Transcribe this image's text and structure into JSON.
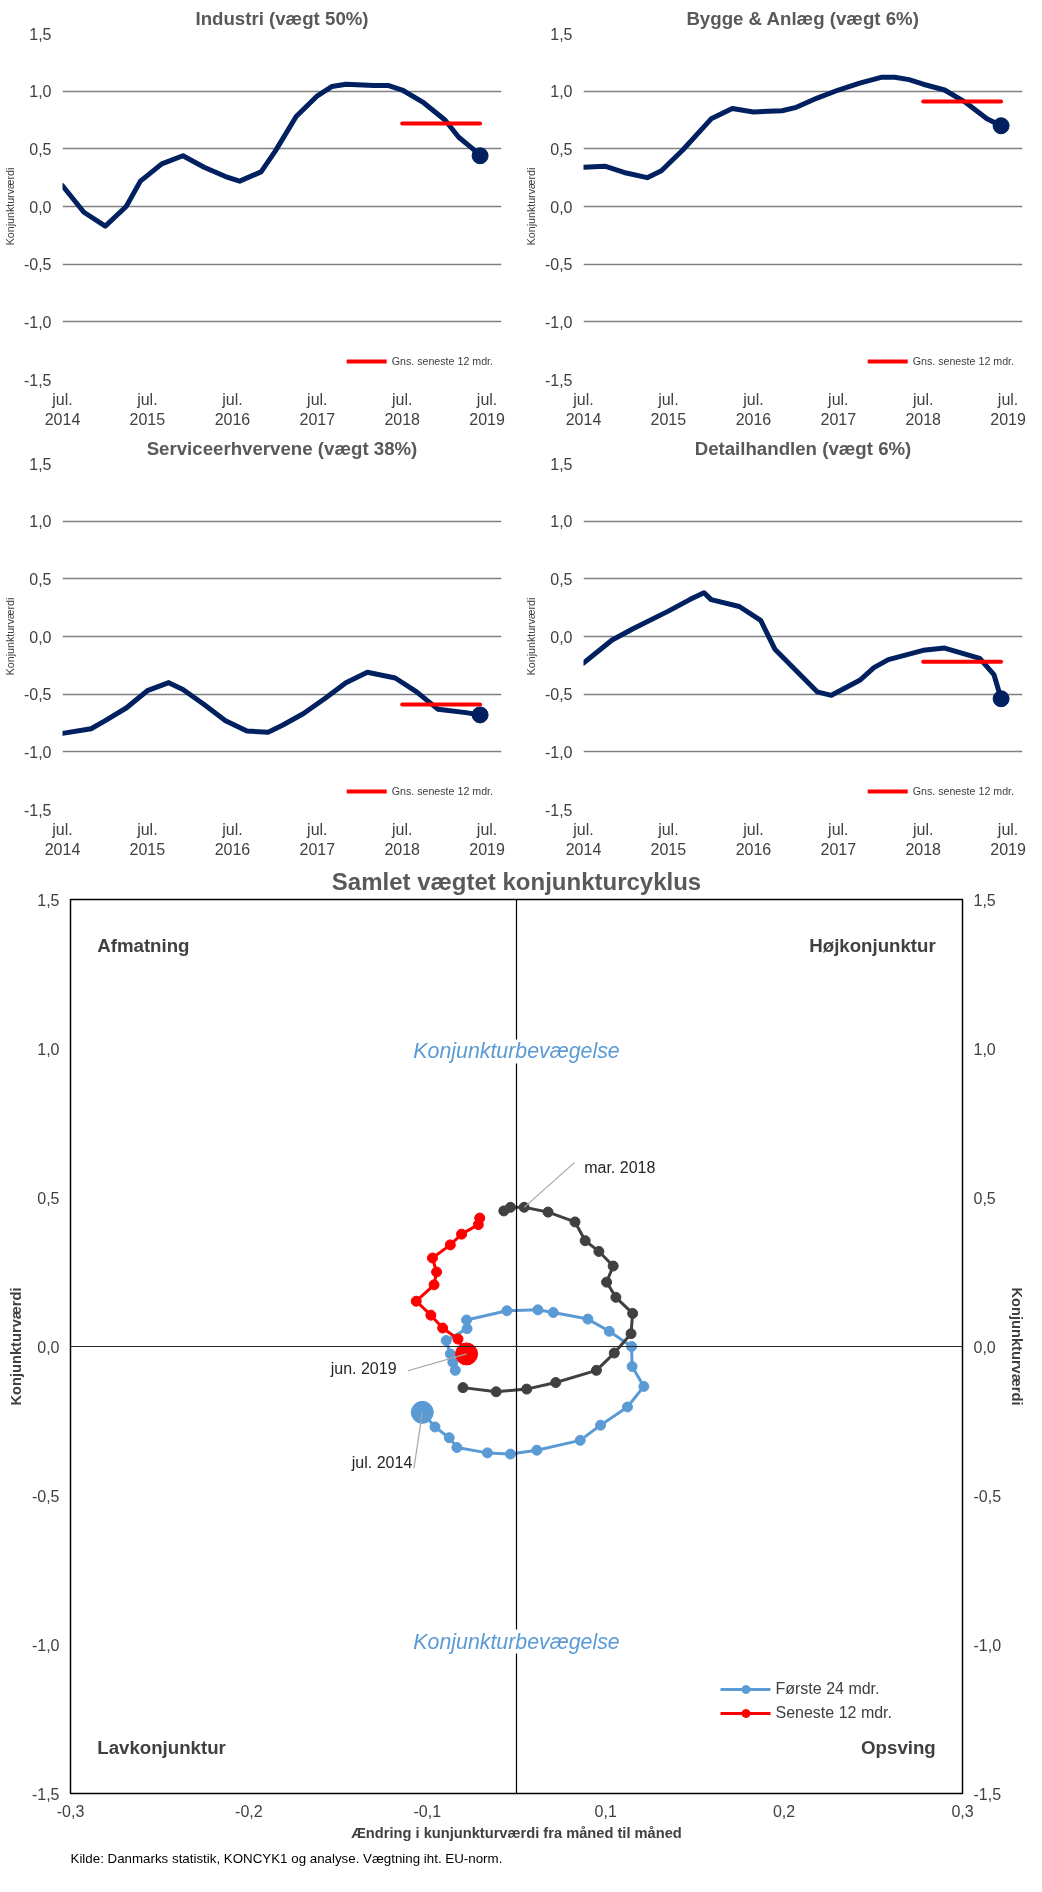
{
  "chart_data": [
    {
      "type": "line",
      "title": "Industri (vægt 50%)",
      "ylabel": "Konjunkturværdi",
      "ylim": [
        -1.5,
        1.5
      ],
      "yticks": [
        {
          "value": -1.5,
          "label": "-1,5"
        },
        {
          "value": -1,
          "label": "-1,0"
        },
        {
          "value": -0.5,
          "label": "-0,5"
        },
        {
          "value": 0,
          "label": "0,0"
        },
        {
          "value": 0.5,
          "label": "0,5"
        },
        {
          "value": 1,
          "label": "1,0"
        },
        {
          "value": 1.5,
          "label": "1,5"
        }
      ],
      "xlim": [
        "2014-07",
        "2019-09"
      ],
      "xticks": [
        {
          "value": "2014-07",
          "label": "jul.\n2014"
        },
        {
          "value": "2015-07",
          "label": "jul.\n2015"
        },
        {
          "value": "2016-07",
          "label": "jul.\n2016"
        },
        {
          "value": "2017-07",
          "label": "jul.\n2017"
        },
        {
          "value": "2018-07",
          "label": "jul.\n2018"
        },
        {
          "value": "2019-07",
          "label": "jul.\n2019"
        }
      ],
      "grid": "y",
      "legend": "bottom right",
      "series": [
        {
          "color": "#002060",
          "x": [
            "2014-07",
            "2014-10",
            "2015-01",
            "2015-04",
            "2015-06",
            "2015-09",
            "2015-12",
            "2016-03",
            "2016-06",
            "2016-08",
            "2016-11",
            "2017-01",
            "2017-04",
            "2017-07",
            "2017-09",
            "2017-11",
            "2018-03",
            "2018-05",
            "2018-07",
            "2018-10",
            "2019-01",
            "2019-03",
            "2019-05",
            "2019-06"
          ],
          "values": [
            0.18,
            -0.05,
            -0.17,
            0.0,
            0.22,
            0.37,
            0.44,
            0.34,
            0.26,
            0.22,
            0.3,
            0.48,
            0.78,
            0.96,
            1.04,
            1.06,
            1.05,
            1.05,
            1.01,
            0.9,
            0.75,
            0.6,
            0.5,
            0.44
          ]
        },
        {
          "type": "scatter",
          "color": "#002060",
          "x": [
            "2019-06"
          ],
          "values": [
            0.44
          ]
        },
        {
          "name": "Gns. seneste 12 mdr.",
          "color": "#ff0000",
          "x": [
            "2018-07",
            "2019-06"
          ],
          "values": [
            0.72,
            0.72
          ]
        }
      ]
    },
    {
      "type": "line",
      "title": "Bygge & Anlæg (vægt 6%)",
      "ylabel": "Konjunkturværdi",
      "ylim": [
        -1.5,
        1.5
      ],
      "yticks": [
        {
          "value": -1.5,
          "label": "-1,5"
        },
        {
          "value": -1,
          "label": "-1,0"
        },
        {
          "value": -0.5,
          "label": "-0,5"
        },
        {
          "value": 0,
          "label": "0,0"
        },
        {
          "value": 0.5,
          "label": "0,5"
        },
        {
          "value": 1,
          "label": "1,0"
        },
        {
          "value": 1.5,
          "label": "1,5"
        }
      ],
      "xlim": [
        "2014-07",
        "2019-09"
      ],
      "xticks": [
        {
          "value": "2014-07",
          "label": "jul.\n2014"
        },
        {
          "value": "2015-07",
          "label": "jul.\n2015"
        },
        {
          "value": "2016-07",
          "label": "jul.\n2016"
        },
        {
          "value": "2017-07",
          "label": "jul.\n2017"
        },
        {
          "value": "2018-07",
          "label": "jul.\n2018"
        },
        {
          "value": "2019-07",
          "label": "jul.\n2019"
        }
      ],
      "grid": "y",
      "legend": "bottom right",
      "series": [
        {
          "color": "#002060",
          "x": [
            "2014-07",
            "2014-10",
            "2015-01",
            "2015-04",
            "2015-06",
            "2015-09",
            "2016-01",
            "2016-04",
            "2016-07",
            "2016-11",
            "2017-01",
            "2017-04",
            "2017-07",
            "2017-10",
            "2018-01",
            "2018-03",
            "2018-05",
            "2018-07",
            "2018-10",
            "2019-01",
            "2019-04",
            "2019-06"
          ],
          "values": [
            0.34,
            0.35,
            0.29,
            0.25,
            0.31,
            0.49,
            0.76,
            0.85,
            0.82,
            0.83,
            0.86,
            0.94,
            1.01,
            1.07,
            1.12,
            1.12,
            1.1,
            1.06,
            1.01,
            0.9,
            0.76,
            0.7
          ]
        },
        {
          "type": "scatter",
          "color": "#002060",
          "x": [
            "2019-06"
          ],
          "values": [
            0.7
          ]
        },
        {
          "name": "Gns. seneste 12 mdr.",
          "color": "#ff0000",
          "x": [
            "2018-07",
            "2019-06"
          ],
          "values": [
            0.91,
            0.91
          ]
        }
      ]
    },
    {
      "type": "line",
      "title": "Serviceerhvervene (vægt 38%)",
      "ylabel": "Konjunkturværdi",
      "ylim": [
        -1.5,
        1.5
      ],
      "yticks": [
        {
          "value": -1.5,
          "label": "-1,5"
        },
        {
          "value": -1,
          "label": "-1,0"
        },
        {
          "value": -0.5,
          "label": "-0,5"
        },
        {
          "value": 0,
          "label": "0,0"
        },
        {
          "value": 0.5,
          "label": "0,5"
        },
        {
          "value": 1,
          "label": "1,0"
        },
        {
          "value": 1.5,
          "label": "1,5"
        }
      ],
      "xlim": [
        "2014-07",
        "2019-09"
      ],
      "xticks": [
        {
          "value": "2014-07",
          "label": "jul.\n2014"
        },
        {
          "value": "2015-07",
          "label": "jul.\n2015"
        },
        {
          "value": "2016-07",
          "label": "jul.\n2016"
        },
        {
          "value": "2017-07",
          "label": "jul.\n2017"
        },
        {
          "value": "2018-07",
          "label": "jul.\n2018"
        },
        {
          "value": "2019-07",
          "label": "jul.\n2019"
        }
      ],
      "grid": "y",
      "legend": "bottom right",
      "series": [
        {
          "color": "#002060",
          "x": [
            "2014-07",
            "2014-11",
            "2015-01",
            "2015-04",
            "2015-07",
            "2015-10",
            "2015-12",
            "2016-03",
            "2016-06",
            "2016-09",
            "2016-12",
            "2017-02",
            "2017-05",
            "2017-08",
            "2017-11",
            "2018-02",
            "2018-06",
            "2018-09",
            "2018-12",
            "2019-04",
            "2019-06"
          ],
          "values": [
            -0.84,
            -0.8,
            -0.73,
            -0.62,
            -0.47,
            -0.4,
            -0.46,
            -0.59,
            -0.73,
            -0.82,
            -0.83,
            -0.77,
            -0.67,
            -0.54,
            -0.4,
            -0.31,
            -0.36,
            -0.48,
            -0.63,
            -0.66,
            -0.68
          ]
        },
        {
          "type": "scatter",
          "color": "#002060",
          "x": [
            "2019-06"
          ],
          "values": [
            -0.68
          ]
        },
        {
          "name": "Gns. seneste 12 mdr.",
          "color": "#ff0000",
          "x": [
            "2018-07",
            "2019-06"
          ],
          "values": [
            -0.59,
            -0.59
          ]
        }
      ]
    },
    {
      "type": "line",
      "title": "Detailhandlen (vægt 6%)",
      "ylabel": "Konjunkturværdi",
      "ylim": [
        -1.5,
        1.5
      ],
      "yticks": [
        {
          "value": -1.5,
          "label": "-1,5"
        },
        {
          "value": -1,
          "label": "-1,0"
        },
        {
          "value": -0.5,
          "label": "-0,5"
        },
        {
          "value": 0,
          "label": "0,0"
        },
        {
          "value": 0.5,
          "label": "0,5"
        },
        {
          "value": 1,
          "label": "1,0"
        },
        {
          "value": 1.5,
          "label": "1,5"
        }
      ],
      "xlim": [
        "2014-07",
        "2019-09"
      ],
      "xticks": [
        {
          "value": "2014-07",
          "label": "jul.\n2014"
        },
        {
          "value": "2015-07",
          "label": "jul.\n2015"
        },
        {
          "value": "2016-07",
          "label": "jul.\n2016"
        },
        {
          "value": "2017-07",
          "label": "jul.\n2017"
        },
        {
          "value": "2018-07",
          "label": "jul.\n2018"
        },
        {
          "value": "2019-07",
          "label": "jul.\n2019"
        }
      ],
      "grid": "y",
      "legend": "bottom right",
      "series": [
        {
          "color": "#002060",
          "x": [
            "2014-07",
            "2014-11",
            "2015-02",
            "2015-07",
            "2015-10",
            "2015-12",
            "2016-01",
            "2016-05",
            "2016-08",
            "2016-10",
            "2017-02",
            "2017-04",
            "2017-06",
            "2017-10",
            "2017-12",
            "2018-02",
            "2018-07",
            "2018-10",
            "2019-03",
            "2019-05",
            "2019-06"
          ],
          "values": [
            -0.23,
            -0.03,
            0.07,
            0.22,
            0.32,
            0.38,
            0.32,
            0.26,
            0.14,
            -0.11,
            -0.36,
            -0.48,
            -0.51,
            -0.38,
            -0.27,
            -0.2,
            -0.12,
            -0.1,
            -0.19,
            -0.33,
            -0.54
          ]
        },
        {
          "type": "scatter",
          "color": "#002060",
          "x": [
            "2019-06"
          ],
          "values": [
            -0.54
          ]
        },
        {
          "name": "Gns. seneste 12 mdr.",
          "color": "#ff0000",
          "x": [
            "2018-07",
            "2019-06"
          ],
          "values": [
            -0.22,
            -0.22
          ]
        }
      ]
    },
    {
      "type": "line",
      "title": "Samlet vægtet konjunkturcyklus",
      "xlabel": "Ændring i kunjunkturværdi fra måned til måned",
      "ylabel": "Konjunkturværdi",
      "y2label": "Konjunkturværdi",
      "marker": "circle",
      "legend": "bottom right",
      "grid": false,
      "xlim": [
        -0.25,
        0.25
      ],
      "xticks": [
        {
          "value": -0.25,
          "label": "-0,3"
        },
        {
          "value": -0.15,
          "label": "-0,2"
        },
        {
          "value": -0.05,
          "label": "-0,1"
        },
        {
          "value": 0.05,
          "label": "0,1"
        },
        {
          "value": 0.15,
          "label": "0,2"
        },
        {
          "value": 0.25,
          "label": "0,3"
        }
      ],
      "ylim": [
        -1.5,
        1.5
      ],
      "yticks": [
        {
          "value": -1.5,
          "label": "-1,5"
        },
        {
          "value": -1,
          "label": "-1,0"
        },
        {
          "value": -0.5,
          "label": "-0,5"
        },
        {
          "value": 0,
          "label": "0,0"
        },
        {
          "value": 0.5,
          "label": "0,5"
        },
        {
          "value": 1,
          "label": "1,0"
        },
        {
          "value": 1.5,
          "label": "1,5"
        }
      ],
      "y2lim": [
        -1.5,
        1.5
      ],
      "y2ticks": [
        {
          "value": -1.5,
          "label": "-1,5"
        },
        {
          "value": -1,
          "label": "-1,0"
        },
        {
          "value": -0.5,
          "label": "-0,5"
        },
        {
          "value": 0,
          "label": "0,0"
        },
        {
          "value": 0.5,
          "label": "0,5"
        },
        {
          "value": 1,
          "label": "1,0"
        },
        {
          "value": 1.5,
          "label": "1,5"
        }
      ],
      "ref_lines": [
        {
          "axis": "x",
          "value": 0,
          "color": "#000000"
        },
        {
          "axis": "y",
          "value": 0,
          "color": "#262626"
        }
      ],
      "series": [
        {
          "name": "Første 24 mdr.",
          "color": "#5b9bd5",
          "x": [
            -0.0528,
            -0.0457,
            -0.0377,
            -0.0334,
            -0.0163,
            -0.0034,
            0.0114,
            0.0357,
            0.0471,
            0.0622,
            0.0714,
            0.0648,
            0.0645,
            0.052,
            0.04,
            0.0206,
            0.012,
            -0.0054,
            -0.028,
            -0.0277,
            -0.0394,
            -0.0371,
            -0.0357,
            -0.0343
          ],
          "values": [
            -0.221,
            -0.27,
            -0.306,
            -0.339,
            -0.357,
            -0.361,
            -0.348,
            -0.315,
            -0.264,
            -0.203,
            -0.134,
            -0.067,
            0.0,
            0.051,
            0.092,
            0.114,
            0.123,
            0.12,
            0.089,
            0.06,
            0.02,
            -0.025,
            -0.053,
            -0.08
          ]
        },
        {
          "color": "#404040",
          "x": [
            -0.03,
            -0.0114,
            0.0057,
            0.022,
            0.0448,
            0.0548,
            0.0642,
            0.0651,
            0.0557,
            0.0505,
            0.0542,
            0.0462,
            0.0385,
            0.0328,
            0.0177,
            0.0043,
            -0.0034,
            -0.0071
          ],
          "values": [
            -0.138,
            -0.152,
            -0.143,
            -0.121,
            -0.08,
            -0.022,
            0.043,
            0.111,
            0.165,
            0.216,
            0.27,
            0.319,
            0.355,
            0.418,
            0.451,
            0.467,
            0.467,
            0.455
          ]
        },
        {
          "name": "Seneste 12 mdr.",
          "color": "#ff0000",
          "x": [
            -0.0206,
            -0.0214,
            -0.0308,
            -0.0371,
            -0.0471,
            -0.0448,
            -0.0462,
            -0.0562,
            -0.048,
            -0.0414,
            -0.0328,
            -0.028
          ],
          "values": [
            0.431,
            0.409,
            0.377,
            0.341,
            0.297,
            0.25,
            0.207,
            0.152,
            0.105,
            0.062,
            0.025,
            -0.025
          ]
        },
        {
          "type": "scatter",
          "color": "#5b9bd5",
          "x": [
            -0.0528
          ],
          "values": [
            -0.221
          ]
        },
        {
          "type": "scatter",
          "color": "#ff0000",
          "x": [
            -0.028
          ],
          "values": [
            -0.025
          ]
        }
      ],
      "annotations": [
        "Afmatning",
        "Højkonjunktur",
        "Lavkonjunktur",
        "Opsving",
        "Konjunkturbevægelse",
        "Konjunkturbevægelse",
        {
          "text": "mar. 2018",
          "x": 0.0043,
          "y": 0.467
        },
        {
          "text": "jun. 2019",
          "x": -0.028,
          "y": -0.025
        },
        {
          "text": "jul. 2014",
          "x": -0.0528,
          "y": -0.221
        },
        "Kilde:    Danmarks statistik, KONCYK1 og analyse. Vægtning iht. EU-norm."
      ]
    }
  ]
}
